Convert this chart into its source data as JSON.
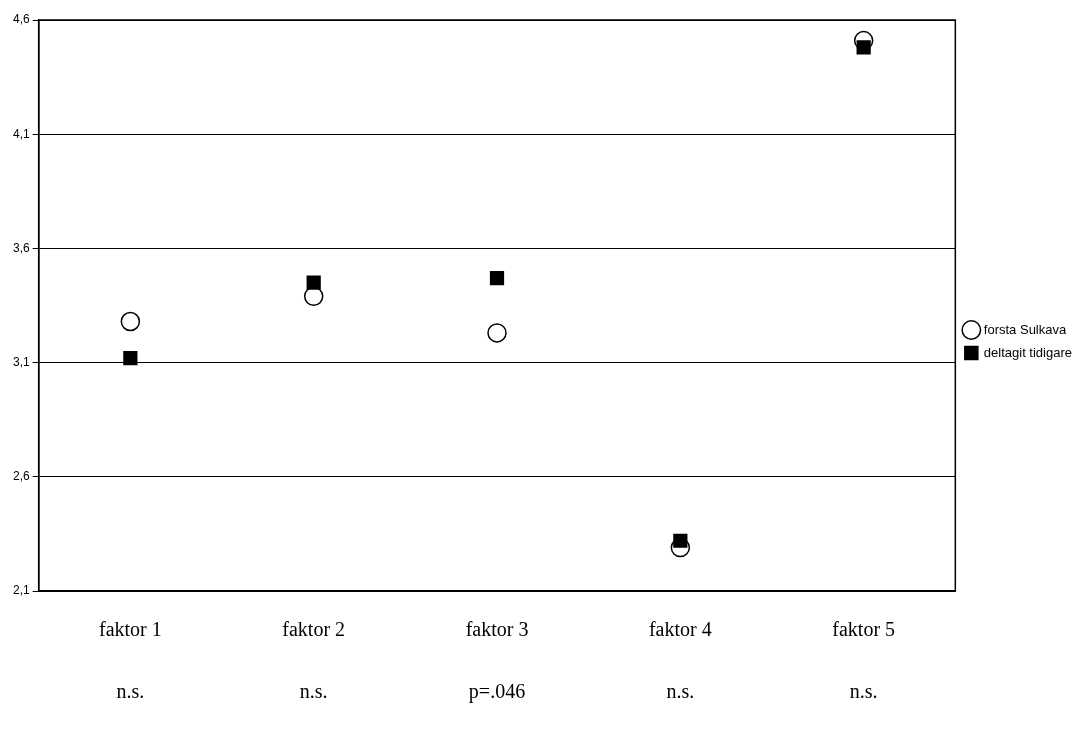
{
  "chart_data": {
    "type": "scatter",
    "categories": [
      "faktor 1",
      "faktor 2",
      "faktor 3",
      "faktor 4",
      "faktor 5"
    ],
    "series": [
      {
        "name": "forsta Sulkava",
        "color": "#000000",
        "marker": "circle",
        "values": [
          3.28,
          3.39,
          3.23,
          2.29,
          4.51
        ]
      },
      {
        "name": "deltagit tidigare",
        "color": "#000000",
        "marker": "square",
        "values": [
          3.12,
          3.45,
          3.47,
          2.32,
          4.48
        ]
      }
    ],
    "ylim": [
      2.1,
      4.6
    ],
    "yticks": [
      {
        "value": 2.1,
        "label": "2,1"
      },
      {
        "value": 2.6,
        "label": "2,6"
      },
      {
        "value": 3.1,
        "label": "3,1"
      },
      {
        "value": 3.6,
        "label": "3,6"
      },
      {
        "value": 4.1,
        "label": "4,1"
      },
      {
        "value": 4.6,
        "label": "4,6"
      }
    ],
    "grid": "y",
    "legend": "right",
    "annotations": [
      "n.s.",
      "n.s.",
      "p=.046",
      "n.s.",
      "n.s."
    ]
  }
}
